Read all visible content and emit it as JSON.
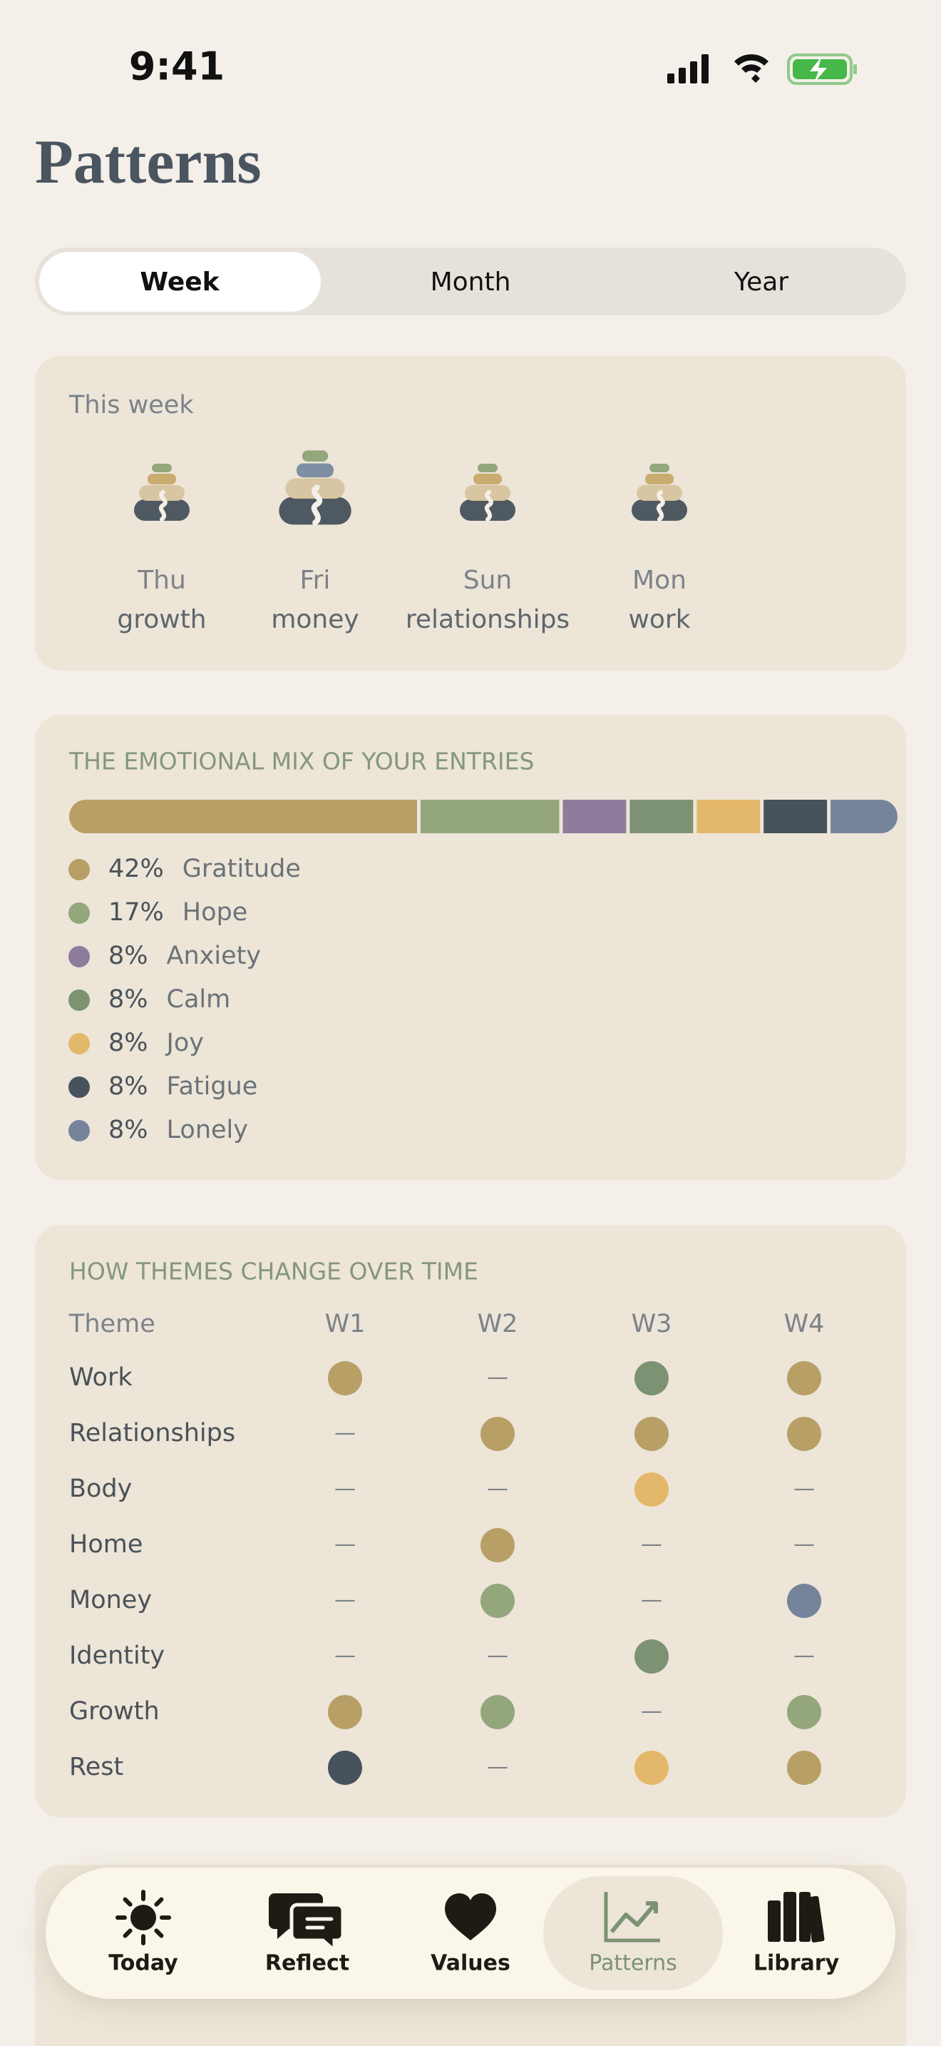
{
  "status_bar": {
    "time": "9:41"
  },
  "header": {
    "title": "Patterns"
  },
  "segmented_control": {
    "options": [
      "Week",
      "Month",
      "Year"
    ],
    "selected": 0
  },
  "this_week": {
    "title": "This week",
    "entries": [
      {
        "day": "Thu",
        "theme": "growth"
      },
      {
        "day": "Fri",
        "theme": "money"
      },
      {
        "day": "Sun",
        "theme": "relationships"
      },
      {
        "day": "Mon",
        "theme": "work"
      }
    ]
  },
  "emotional_mix": {
    "title": "THE EMOTIONAL MIX OF YOUR ENTRIES",
    "items": [
      {
        "name": "Gratitude",
        "value": 42,
        "value_label": "42%",
        "color": "#b89f66"
      },
      {
        "name": "Hope",
        "value": 17,
        "value_label": "17%",
        "color": "#93a67c"
      },
      {
        "name": "Anxiety",
        "value": 8,
        "value_label": "8%",
        "color": "#8e7c9c"
      },
      {
        "name": "Calm",
        "value": 8,
        "value_label": "8%",
        "color": "#7d9272"
      },
      {
        "name": "Joy",
        "value": 8,
        "value_label": "8%",
        "color": "#e4b86a"
      },
      {
        "name": "Fatigue",
        "value": 8,
        "value_label": "8%",
        "color": "#47525c"
      },
      {
        "name": "Lonely",
        "value": 8,
        "value_label": "8%",
        "color": "#75849a"
      }
    ]
  },
  "themes": {
    "title": "HOW THEMES CHANGE OVER TIME",
    "columns": [
      "Theme",
      "W1",
      "W2",
      "W3",
      "W4"
    ],
    "rows": [
      {
        "name": "Work",
        "cells": [
          "#b89f66",
          "—",
          "#7d9272",
          "#b89f66"
        ]
      },
      {
        "name": "Relationships",
        "cells": [
          "—",
          "#b89f66",
          "#b89f66",
          "#b89f66"
        ]
      },
      {
        "name": "Body",
        "cells": [
          "—",
          "—",
          "#e4b86a",
          "—"
        ]
      },
      {
        "name": "Home",
        "cells": [
          "—",
          "#b89f66",
          "—",
          "—"
        ]
      },
      {
        "name": "Money",
        "cells": [
          "—",
          "#93a67c",
          "—",
          "#75849a"
        ]
      },
      {
        "name": "Identity",
        "cells": [
          "—",
          "—",
          "#7d9272",
          "—"
        ]
      },
      {
        "name": "Growth",
        "cells": [
          "#b89f66",
          "#93a67c",
          "—",
          "#93a67c"
        ]
      },
      {
        "name": "Rest",
        "cells": [
          "#47525c",
          "—",
          "#e4b86a",
          "#b89f66"
        ]
      }
    ]
  },
  "tab_bar": {
    "tabs": [
      "Today",
      "Reflect",
      "Values",
      "Patterns",
      "Library"
    ],
    "selected": 3
  }
}
